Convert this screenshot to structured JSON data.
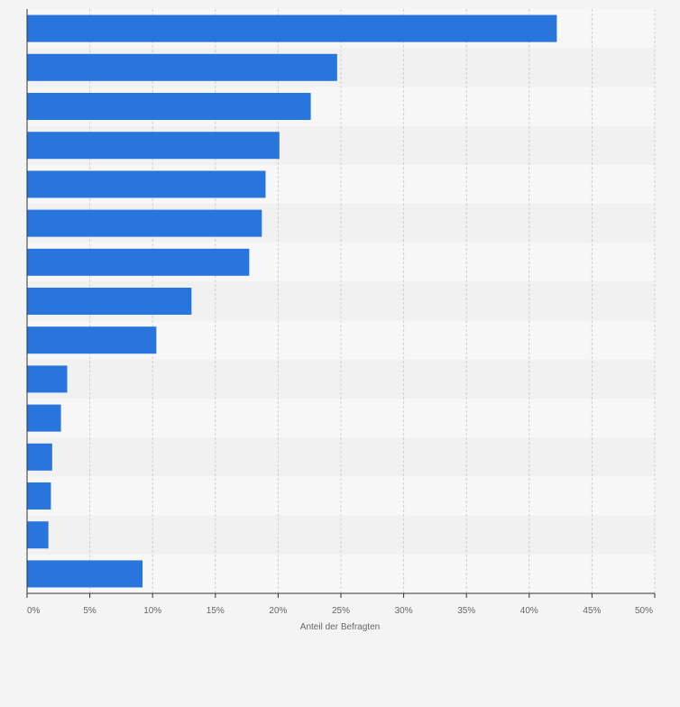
{
  "chart_data": {
    "type": "bar",
    "orientation": "horizontal",
    "categories": [
      "",
      "",
      "",
      "",
      "",
      "",
      "",
      "",
      "",
      "",
      "",
      "",
      "",
      "",
      ""
    ],
    "values": [
      42.2,
      24.7,
      22.6,
      20.1,
      19.0,
      18.7,
      17.7,
      13.1,
      10.3,
      3.2,
      2.7,
      2.0,
      1.9,
      1.7,
      9.2
    ],
    "xlabel": "Anteil der Befragten",
    "xlim": [
      0,
      50
    ],
    "xticks": [
      0,
      5,
      10,
      15,
      20,
      25,
      30,
      35,
      40,
      45,
      50
    ],
    "xtick_labels": [
      "0%",
      "5%",
      "10%",
      "15%",
      "20%",
      "25%",
      "30%",
      "35%",
      "40%",
      "45%",
      "50%"
    ],
    "grid": true,
    "colors": {
      "bar": "#2876dd",
      "band_light": "#f7f7f7",
      "band_dark": "#f1f1f1",
      "grid": "#cfcfcf",
      "axis": "#333333",
      "tick_text": "#666666",
      "background": "#f4f4f4"
    }
  }
}
